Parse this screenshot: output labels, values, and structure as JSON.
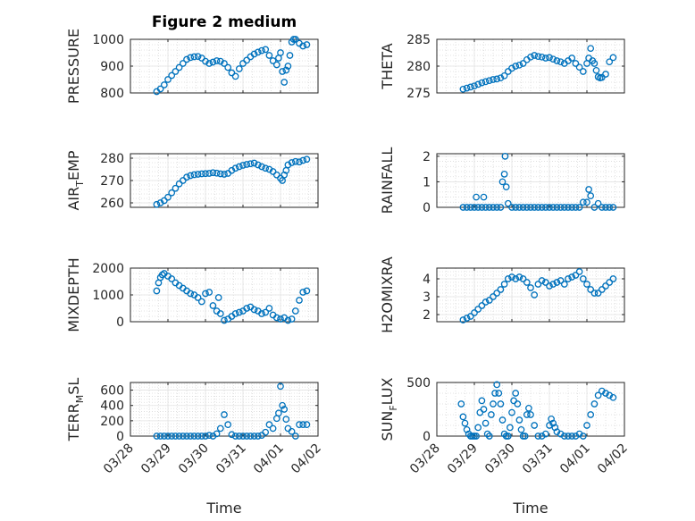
{
  "figure": {
    "title": "Figure 2 medium",
    "xlabel": "Time",
    "x_ticklabels": [
      "03/28",
      "03/29",
      "03/30",
      "03/31",
      "04/01",
      "04/02"
    ],
    "marker_color": "#0072BD",
    "grid_color": "#DADADA"
  },
  "chart_data": [
    {
      "type": "scatter",
      "ylabel": "PRESSURE",
      "ylim": [
        800,
        1000
      ],
      "ylabel_sub": "",
      "yticks": [
        800,
        900,
        1000
      ],
      "y_ticklabels": [
        "800",
        "900",
        "1000"
      ],
      "grid": true,
      "x": [
        0.7,
        0.8,
        0.9,
        1.0,
        1.1,
        1.2,
        1.3,
        1.4,
        1.5,
        1.6,
        1.7,
        1.8,
        1.9,
        2.0,
        2.1,
        2.2,
        2.3,
        2.4,
        2.5,
        2.6,
        2.7,
        2.8,
        2.9,
        3.0,
        3.1,
        3.2,
        3.3,
        3.4,
        3.5,
        3.6,
        3.7,
        3.8,
        3.9,
        3.95,
        4.0,
        4.05,
        4.1,
        4.15,
        4.2,
        4.25,
        4.3,
        4.35,
        4.4,
        4.5,
        4.6,
        4.7
      ],
      "y": [
        805,
        815,
        830,
        850,
        865,
        880,
        895,
        910,
        925,
        932,
        935,
        936,
        930,
        918,
        910,
        915,
        920,
        918,
        910,
        895,
        875,
        862,
        890,
        910,
        922,
        935,
        945,
        952,
        958,
        962,
        940,
        920,
        905,
        930,
        950,
        880,
        840,
        885,
        900,
        940,
        990,
        1000,
        1000,
        985,
        975,
        980
      ]
    },
    {
      "type": "scatter",
      "ylabel": "THETA",
      "ylim": [
        275,
        285
      ],
      "ylabel_sub": "",
      "yticks": [
        275,
        280,
        285
      ],
      "y_ticklabels": [
        "275",
        "280",
        "285"
      ],
      "grid": true,
      "x": [
        0.7,
        0.8,
        0.9,
        1.0,
        1.1,
        1.2,
        1.3,
        1.4,
        1.5,
        1.6,
        1.7,
        1.8,
        1.9,
        2.0,
        2.1,
        2.2,
        2.3,
        2.4,
        2.5,
        2.6,
        2.7,
        2.8,
        2.9,
        3.0,
        3.1,
        3.2,
        3.3,
        3.4,
        3.5,
        3.6,
        3.7,
        3.8,
        3.9,
        4.0,
        4.05,
        4.1,
        4.15,
        4.2,
        4.25,
        4.3,
        4.35,
        4.4,
        4.5,
        4.6,
        4.7
      ],
      "y": [
        275.7,
        275.9,
        276.1,
        276.3,
        276.6,
        276.9,
        277.1,
        277.3,
        277.5,
        277.6,
        277.8,
        278.2,
        279.0,
        279.6,
        280.0,
        280.2,
        280.5,
        281.2,
        281.7,
        282.0,
        281.8,
        281.7,
        281.5,
        281.6,
        281.3,
        281.0,
        280.8,
        280.5,
        281.0,
        281.5,
        280.5,
        279.8,
        279.0,
        280.5,
        281.5,
        283.3,
        281.0,
        280.5,
        279.2,
        278.0,
        277.8,
        277.9,
        278.5,
        280.8,
        281.6
      ]
    },
    {
      "type": "scatter",
      "ylabel": "AIR",
      "ylabel_sub": "T",
      "ylabel_rest": "EMP",
      "ylim": [
        258,
        282
      ],
      "yticks": [
        260,
        270,
        280
      ],
      "y_ticklabels": [
        "260",
        "270",
        "280"
      ],
      "grid": true,
      "x": [
        0.7,
        0.8,
        0.9,
        1.0,
        1.1,
        1.2,
        1.3,
        1.4,
        1.5,
        1.6,
        1.7,
        1.8,
        1.9,
        2.0,
        2.1,
        2.2,
        2.3,
        2.4,
        2.5,
        2.6,
        2.7,
        2.8,
        2.9,
        3.0,
        3.1,
        3.2,
        3.3,
        3.4,
        3.5,
        3.6,
        3.7,
        3.8,
        3.9,
        4.0,
        4.05,
        4.1,
        4.15,
        4.2,
        4.3,
        4.4,
        4.5,
        4.6,
        4.7
      ],
      "y": [
        259.3,
        260,
        261,
        262.5,
        264.5,
        266.5,
        268.5,
        270,
        271.5,
        272.2,
        272.6,
        272.8,
        273.0,
        273.1,
        273.2,
        273.5,
        273.3,
        273.0,
        272.8,
        273.2,
        274.5,
        275.5,
        276.2,
        276.8,
        277.2,
        277.5,
        277.8,
        277.0,
        276.2,
        275.5,
        275.0,
        274.0,
        272.5,
        271.0,
        270.0,
        272.5,
        274.5,
        277.0,
        278.0,
        278.5,
        278.3,
        279.0,
        279.5
      ]
    },
    {
      "type": "scatter",
      "ylabel": "RAINFALL",
      "ylim": [
        0,
        2.1
      ],
      "ylabel_sub": "",
      "yticks": [
        0,
        1,
        2
      ],
      "y_ticklabels": [
        "0",
        "1",
        "2"
      ],
      "grid": true,
      "x": [
        0.7,
        0.8,
        0.9,
        1.0,
        1.05,
        1.1,
        1.2,
        1.25,
        1.3,
        1.4,
        1.5,
        1.6,
        1.7,
        1.75,
        1.8,
        1.82,
        1.85,
        1.9,
        2.0,
        2.1,
        2.2,
        2.3,
        2.4,
        2.5,
        2.6,
        2.7,
        2.8,
        2.9,
        3.0,
        3.1,
        3.2,
        3.3,
        3.4,
        3.5,
        3.6,
        3.7,
        3.8,
        3.9,
        4.0,
        4.05,
        4.1,
        4.2,
        4.3,
        4.4,
        4.5,
        4.6,
        4.7
      ],
      "y": [
        0,
        0,
        0,
        0,
        0.4,
        0,
        0,
        0.4,
        0,
        0,
        0,
        0,
        0,
        1.0,
        1.3,
        2.0,
        0.8,
        0.15,
        0,
        0,
        0,
        0,
        0,
        0,
        0,
        0,
        0,
        0,
        0,
        0,
        0,
        0,
        0,
        0,
        0,
        0,
        0,
        0.2,
        0.2,
        0.7,
        0.45,
        0,
        0.15,
        0,
        0,
        0,
        0
      ]
    },
    {
      "type": "scatter",
      "ylabel": "MIXDEPTH",
      "ylim": [
        0,
        2000
      ],
      "ylabel_sub": "",
      "yticks": [
        0,
        1000,
        2000
      ],
      "y_ticklabels": [
        "0",
        "1000",
        "2000"
      ],
      "grid": true,
      "x": [
        0.7,
        0.75,
        0.8,
        0.85,
        0.9,
        1.0,
        1.1,
        1.2,
        1.3,
        1.4,
        1.5,
        1.6,
        1.7,
        1.8,
        1.9,
        2.0,
        2.1,
        2.2,
        2.3,
        2.35,
        2.4,
        2.5,
        2.6,
        2.7,
        2.8,
        2.9,
        3.0,
        3.1,
        3.2,
        3.3,
        3.4,
        3.5,
        3.6,
        3.7,
        3.8,
        3.9,
        4.0,
        4.1,
        4.2,
        4.3,
        4.4,
        4.5,
        4.6,
        4.7
      ],
      "y": [
        1150,
        1450,
        1650,
        1750,
        1800,
        1700,
        1600,
        1450,
        1350,
        1250,
        1150,
        1050,
        1000,
        900,
        750,
        1050,
        1100,
        600,
        400,
        900,
        300,
        50,
        100,
        200,
        300,
        350,
        400,
        500,
        550,
        450,
        400,
        300,
        350,
        500,
        250,
        150,
        100,
        150,
        50,
        100,
        400,
        800,
        1100,
        1150
      ]
    },
    {
      "type": "scatter",
      "ylabel": "H2OMIXRA",
      "ylim": [
        1.6,
        4.6
      ],
      "ylabel_sub": "",
      "yticks": [
        2,
        3,
        4
      ],
      "y_ticklabels": [
        "2",
        "3",
        "4"
      ],
      "grid": true,
      "x": [
        0.7,
        0.8,
        0.9,
        1.0,
        1.1,
        1.2,
        1.3,
        1.4,
        1.5,
        1.6,
        1.7,
        1.8,
        1.9,
        2.0,
        2.1,
        2.2,
        2.3,
        2.4,
        2.5,
        2.6,
        2.7,
        2.8,
        2.9,
        3.0,
        3.1,
        3.2,
        3.3,
        3.4,
        3.5,
        3.6,
        3.7,
        3.8,
        3.9,
        4.0,
        4.1,
        4.2,
        4.3,
        4.4,
        4.5,
        4.6,
        4.7
      ],
      "y": [
        1.7,
        1.8,
        1.9,
        2.1,
        2.3,
        2.5,
        2.7,
        2.8,
        3.0,
        3.2,
        3.4,
        3.7,
        4.0,
        4.1,
        4.0,
        4.1,
        4.0,
        3.8,
        3.5,
        3.1,
        3.7,
        3.9,
        3.8,
        3.6,
        3.7,
        3.8,
        3.9,
        3.7,
        4.0,
        4.1,
        4.2,
        4.4,
        4.0,
        3.7,
        3.4,
        3.2,
        3.2,
        3.4,
        3.6,
        3.8,
        4.0
      ]
    },
    {
      "type": "scatter",
      "ylabel": "TERR",
      "ylabel_sub": "M",
      "ylabel_rest": "SL",
      "ylim": [
        0,
        700
      ],
      "yticks": [
        0,
        200,
        400,
        600
      ],
      "y_ticklabels": [
        "0",
        "200",
        "400",
        "600"
      ],
      "grid": true,
      "x": [
        0.7,
        0.8,
        0.9,
        1.0,
        1.1,
        1.2,
        1.3,
        1.4,
        1.5,
        1.6,
        1.7,
        1.8,
        1.9,
        2.0,
        2.1,
        2.2,
        2.3,
        2.4,
        2.5,
        2.6,
        2.7,
        2.8,
        2.9,
        3.0,
        3.1,
        3.2,
        3.3,
        3.4,
        3.5,
        3.6,
        3.7,
        3.8,
        3.9,
        3.95,
        4.0,
        4.05,
        4.1,
        4.15,
        4.2,
        4.3,
        4.4,
        4.5,
        4.6,
        4.7
      ],
      "y": [
        0,
        0,
        0,
        0,
        0,
        0,
        0,
        0,
        0,
        0,
        0,
        0,
        0,
        0,
        10,
        0,
        30,
        100,
        280,
        150,
        20,
        0,
        0,
        0,
        0,
        0,
        0,
        0,
        10,
        50,
        150,
        100,
        230,
        300,
        650,
        400,
        350,
        220,
        100,
        60,
        0,
        150,
        150,
        150
      ]
    },
    {
      "type": "scatter",
      "ylabel": "SUN",
      "ylabel_sub": "F",
      "ylabel_rest": "LUX",
      "ylim": [
        0,
        500
      ],
      "yticks": [
        0,
        500
      ],
      "y_ticklabels": [
        "0",
        "500"
      ],
      "grid": true,
      "x": [
        0.65,
        0.7,
        0.75,
        0.8,
        0.85,
        0.9,
        0.95,
        1.0,
        1.05,
        1.1,
        1.15,
        1.2,
        1.25,
        1.3,
        1.35,
        1.4,
        1.45,
        1.5,
        1.55,
        1.6,
        1.65,
        1.7,
        1.75,
        1.8,
        1.85,
        1.9,
        1.95,
        2.0,
        2.05,
        2.1,
        2.15,
        2.2,
        2.25,
        2.3,
        2.35,
        2.4,
        2.45,
        2.5,
        2.6,
        2.7,
        2.8,
        2.9,
        3.0,
        3.05,
        3.1,
        3.15,
        3.2,
        3.3,
        3.4,
        3.5,
        3.6,
        3.7,
        3.8,
        3.9,
        4.0,
        4.1,
        4.2,
        4.3,
        4.4,
        4.5,
        4.6,
        4.7
      ],
      "y": [
        300,
        180,
        120,
        60,
        20,
        0,
        0,
        0,
        0,
        80,
        220,
        330,
        250,
        120,
        20,
        0,
        200,
        300,
        400,
        480,
        400,
        300,
        150,
        20,
        0,
        0,
        80,
        220,
        330,
        400,
        300,
        150,
        60,
        0,
        0,
        200,
        260,
        200,
        100,
        0,
        0,
        20,
        100,
        160,
        120,
        80,
        40,
        20,
        0,
        0,
        0,
        0,
        20,
        0,
        100,
        200,
        300,
        380,
        420,
        400,
        380,
        360
      ]
    }
  ]
}
